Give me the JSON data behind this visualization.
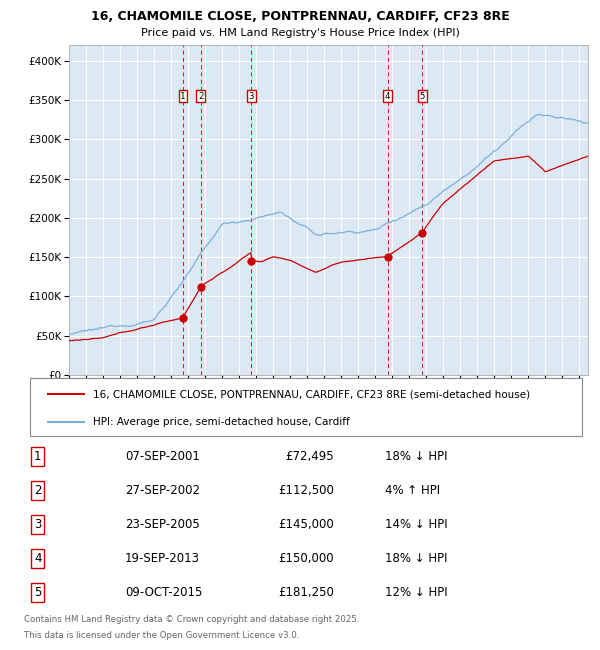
{
  "title1": "16, CHAMOMILE CLOSE, PONTPRENNAU, CARDIFF, CF23 8RE",
  "title2": "Price paid vs. HM Land Registry's House Price Index (HPI)",
  "bg_color": "#dce9f5",
  "hpi_color": "#7aafdc",
  "price_color": "#cc0000",
  "marker_color": "#cc0000",
  "vline_color": "#cc0000",
  "ylim": [
    0,
    420000
  ],
  "yticks": [
    0,
    50000,
    100000,
    150000,
    200000,
    250000,
    300000,
    350000,
    400000
  ],
  "ytick_labels": [
    "£0",
    "£50K",
    "£100K",
    "£150K",
    "£200K",
    "£250K",
    "£300K",
    "£350K",
    "£400K"
  ],
  "legend1": "16, CHAMOMILE CLOSE, PONTPRENNAU, CARDIFF, CF23 8RE (semi-detached house)",
  "legend2": "HPI: Average price, semi-detached house, Cardiff",
  "sales": [
    {
      "num": 1,
      "date_x": 2001.69,
      "price": 72495
    },
    {
      "num": 2,
      "date_x": 2002.74,
      "price": 112500
    },
    {
      "num": 3,
      "date_x": 2005.72,
      "price": 145000
    },
    {
      "num": 4,
      "date_x": 2013.72,
      "price": 150000
    },
    {
      "num": 5,
      "date_x": 2015.77,
      "price": 181250
    }
  ],
  "table_rows": [
    {
      "num": 1,
      "date": "07-SEP-2001",
      "price": "£72,495",
      "hpi": "18% ↓ HPI"
    },
    {
      "num": 2,
      "date": "27-SEP-2002",
      "price": "£112,500",
      "hpi": "4% ↑ HPI"
    },
    {
      "num": 3,
      "date": "23-SEP-2005",
      "price": "£145,000",
      "hpi": "14% ↓ HPI"
    },
    {
      "num": 4,
      "date": "19-SEP-2013",
      "price": "£150,000",
      "hpi": "18% ↓ HPI"
    },
    {
      "num": 5,
      "date": "09-OCT-2015",
      "price": "£181,250",
      "hpi": "12% ↓ HPI"
    }
  ],
  "footnote1": "Contains HM Land Registry data © Crown copyright and database right 2025.",
  "footnote2": "This data is licensed under the Open Government Licence v3.0.",
  "xmin": 1995.0,
  "xmax": 2025.5
}
